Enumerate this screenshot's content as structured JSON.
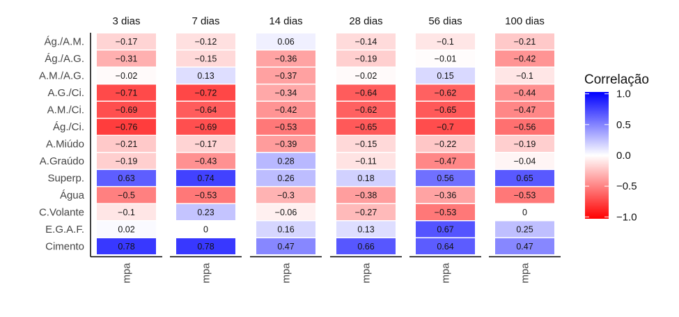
{
  "chart_data": {
    "type": "heatmap",
    "panels": [
      "3 dias",
      "7 dias",
      "14 dias",
      "28 dias",
      "56 dias",
      "100 dias"
    ],
    "rows": [
      "Ág./A.M.",
      "Ág./A.G.",
      "A.M./A.G.",
      "A.G./Ci.",
      "A.M./Ci.",
      "Ág./Ci.",
      "A.Miúdo",
      "A.Graúdo",
      "Superp.",
      "Água",
      "C.Volante",
      "E.G.A.F.",
      "Cimento"
    ],
    "column_label": "mpa",
    "values": [
      [
        -0.17,
        -0.31,
        -0.02,
        -0.71,
        -0.69,
        -0.76,
        -0.21,
        -0.19,
        0.63,
        -0.5,
        -0.1,
        0.02,
        0.78
      ],
      [
        -0.12,
        -0.15,
        0.13,
        -0.72,
        -0.64,
        -0.69,
        -0.17,
        -0.43,
        0.74,
        -0.53,
        0.23,
        0,
        0.78
      ],
      [
        0.06,
        -0.36,
        -0.37,
        -0.34,
        -0.42,
        -0.53,
        -0.39,
        0.28,
        0.26,
        -0.3,
        -0.06,
        0.16,
        0.47
      ],
      [
        -0.14,
        -0.19,
        -0.02,
        -0.64,
        -0.62,
        -0.65,
        -0.15,
        -0.11,
        0.18,
        -0.38,
        -0.27,
        0.13,
        0.66
      ],
      [
        -0.1,
        -0.01,
        0.15,
        -0.62,
        -0.65,
        -0.7,
        -0.22,
        -0.47,
        0.56,
        -0.36,
        -0.53,
        0.67,
        0.64
      ],
      [
        -0.21,
        -0.42,
        -0.1,
        -0.44,
        -0.47,
        -0.56,
        -0.19,
        -0.04,
        0.65,
        -0.53,
        0,
        0.25,
        0.47
      ]
    ],
    "legend": {
      "title": "Correlação",
      "ticks": [
        1.0,
        0.5,
        0.0,
        -0.5,
        -1.0
      ],
      "tick_labels": [
        "1.0",
        "0.5",
        "0.0",
        "−0.5",
        "−1.0"
      ],
      "range": [
        -1,
        1
      ],
      "placement": "right"
    },
    "colors": {
      "high": "#0000ff",
      "mid": "#ffffff",
      "low": "#ff0000"
    }
  }
}
